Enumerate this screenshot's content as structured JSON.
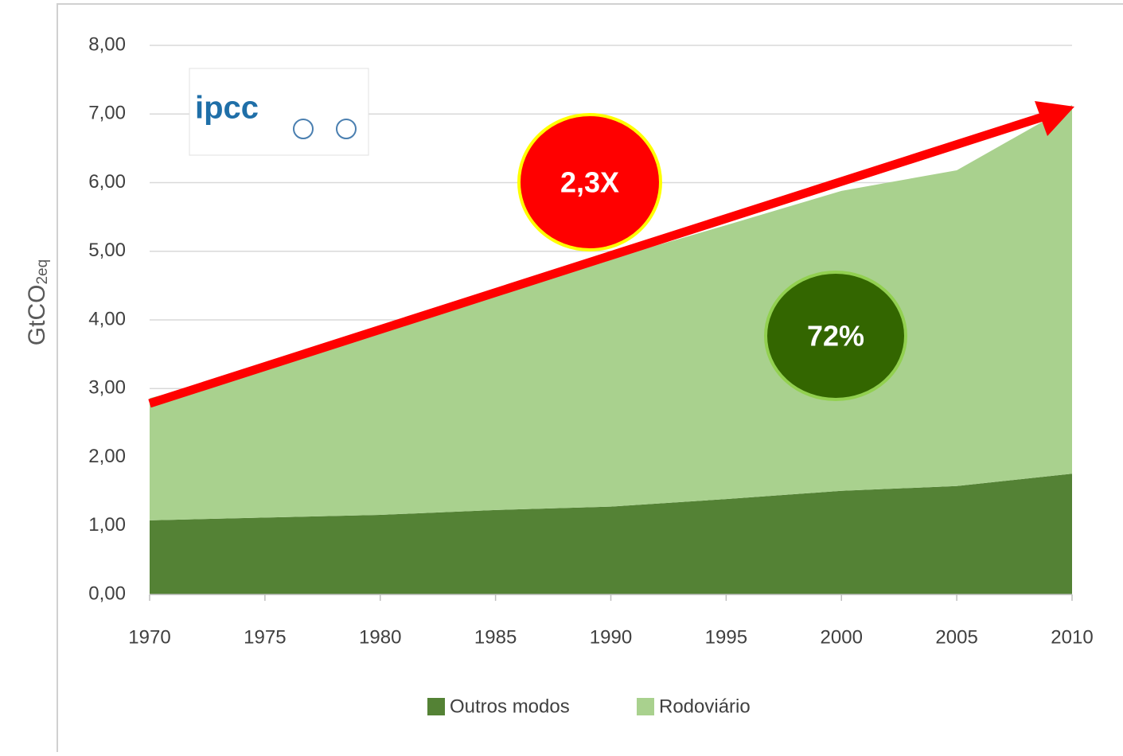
{
  "chart_data": {
    "type": "stacked_area",
    "y_label": {
      "main": "GtCO",
      "sub": "2eq"
    },
    "logo_text": "ipcc",
    "x": [
      1970,
      1975,
      1980,
      1985,
      1990,
      1995,
      2000,
      2005,
      2010
    ],
    "series": [
      {
        "name": "Outros modos",
        "color": "#548235",
        "values": [
          1.08,
          1.12,
          1.16,
          1.23,
          1.28,
          1.39,
          1.51,
          1.58,
          1.76
        ]
      },
      {
        "name": "Rodoviário",
        "color": "#a9d18e",
        "values": [
          1.78,
          2.18,
          2.69,
          3.12,
          3.61,
          3.99,
          4.37,
          4.6,
          5.37
        ]
      }
    ],
    "xlim": [
      1970,
      2010
    ],
    "xticks": [
      1970,
      1975,
      1980,
      1985,
      1990,
      1995,
      2000,
      2005,
      2010
    ],
    "ylim": [
      0,
      8
    ],
    "yticks": [
      {
        "value": 0,
        "label": "0,00"
      },
      {
        "value": 1,
        "label": "1,00"
      },
      {
        "value": 2,
        "label": "2,00"
      },
      {
        "value": 3,
        "label": "3,00"
      },
      {
        "value": 4,
        "label": "4,00"
      },
      {
        "value": 5,
        "label": "5,00"
      },
      {
        "value": 6,
        "label": "6,00"
      },
      {
        "value": 7,
        "label": "7,00"
      },
      {
        "value": 8,
        "label": "8,00"
      }
    ],
    "grid": true,
    "annotations": [
      "2,3X",
      "72%"
    ],
    "legend": "bottom"
  }
}
